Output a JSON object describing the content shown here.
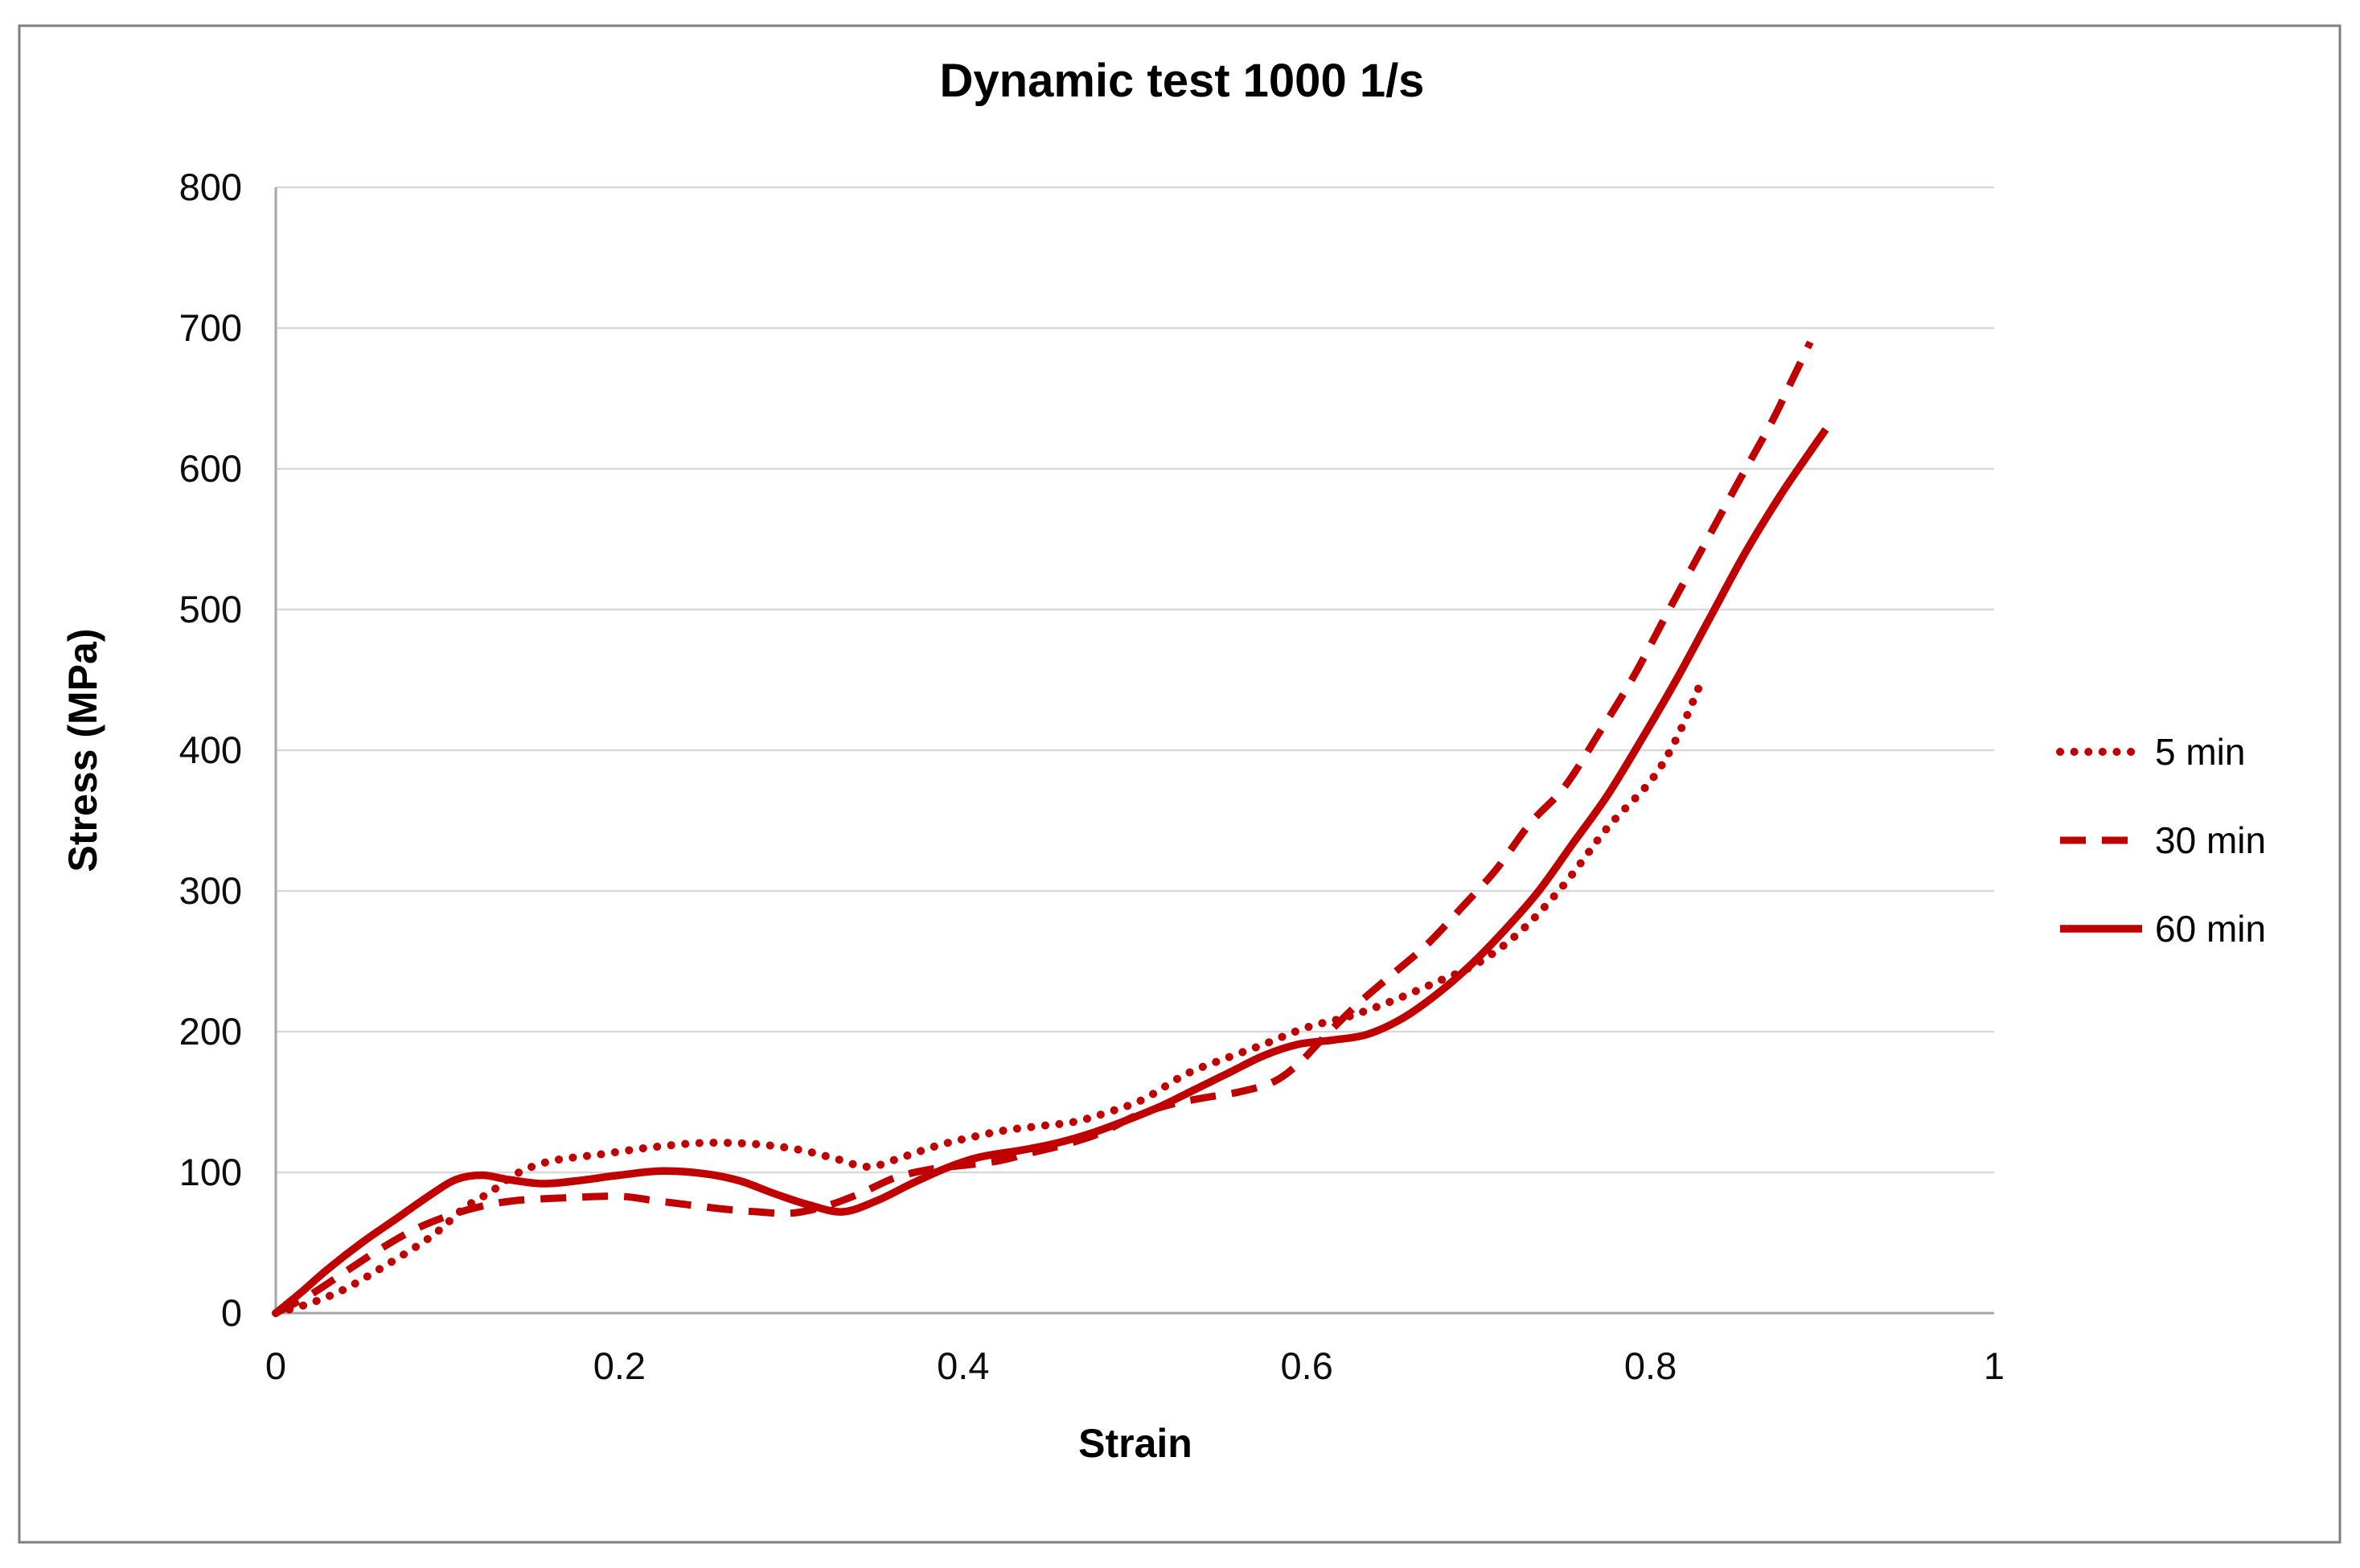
{
  "window": {
    "background": "#ffffff",
    "border_color": "#7f7f7f"
  },
  "colors": {
    "series": "#C00000",
    "gridline": "#D9D9D9",
    "axis_line": "#A6A6A6",
    "text": "#000000"
  },
  "chart_data": {
    "type": "line",
    "title": "Dynamic test 1000 1/s",
    "xlabel": "Strain",
    "ylabel": "Stress (MPa)",
    "xlim": [
      0,
      1
    ],
    "ylim": [
      0,
      800
    ],
    "x_ticks": [
      0,
      0.2,
      0.4,
      0.6,
      0.8,
      1
    ],
    "x_tick_labels": [
      "0",
      "0.2",
      "0.4",
      "0.6",
      "0.8",
      "1"
    ],
    "y_ticks": [
      0,
      100,
      200,
      300,
      400,
      500,
      600,
      700,
      800
    ],
    "y_tick_labels": [
      "0",
      "100",
      "200",
      "300",
      "400",
      "500",
      "600",
      "700",
      "800"
    ],
    "grid": "horizontal",
    "legend_position": "right",
    "series": [
      {
        "name": "5 min",
        "style": "dotted",
        "color": "#C00000",
        "points": [
          [
            0,
            0
          ],
          [
            0.02,
            7
          ],
          [
            0.04,
            17
          ],
          [
            0.06,
            31
          ],
          [
            0.09,
            54
          ],
          [
            0.11,
            75
          ],
          [
            0.125,
            86
          ],
          [
            0.14,
            99
          ],
          [
            0.16,
            108
          ],
          [
            0.19,
            113
          ],
          [
            0.22,
            118
          ],
          [
            0.25,
            121
          ],
          [
            0.28,
            120
          ],
          [
            0.305,
            116
          ],
          [
            0.325,
            110
          ],
          [
            0.345,
            104
          ],
          [
            0.365,
            111
          ],
          [
            0.385,
            119
          ],
          [
            0.405,
            125
          ],
          [
            0.425,
            130
          ],
          [
            0.445,
            133
          ],
          [
            0.465,
            136
          ],
          [
            0.485,
            143
          ],
          [
            0.505,
            152
          ],
          [
            0.53,
            170
          ],
          [
            0.555,
            182
          ],
          [
            0.575,
            191
          ],
          [
            0.6,
            203
          ],
          [
            0.625,
            211
          ],
          [
            0.65,
            222
          ],
          [
            0.675,
            235
          ],
          [
            0.7,
            249
          ],
          [
            0.725,
            272
          ],
          [
            0.75,
            305
          ],
          [
            0.775,
            345
          ],
          [
            0.8,
            378
          ],
          [
            0.815,
            408
          ],
          [
            0.83,
            450
          ]
        ]
      },
      {
        "name": "30 min",
        "style": "dashed",
        "color": "#C00000",
        "points": [
          [
            0,
            0
          ],
          [
            0.02,
            13
          ],
          [
            0.04,
            29
          ],
          [
            0.06,
            45
          ],
          [
            0.08,
            59
          ],
          [
            0.1,
            69
          ],
          [
            0.12,
            76
          ],
          [
            0.14,
            80
          ],
          [
            0.17,
            82
          ],
          [
            0.2,
            83
          ],
          [
            0.22,
            80
          ],
          [
            0.24,
            77
          ],
          [
            0.26,
            74
          ],
          [
            0.28,
            72
          ],
          [
            0.3,
            71
          ],
          [
            0.32,
            76
          ],
          [
            0.34,
            85
          ],
          [
            0.36,
            96
          ],
          [
            0.38,
            102
          ],
          [
            0.4,
            105
          ],
          [
            0.42,
            108
          ],
          [
            0.44,
            114
          ],
          [
            0.46,
            120
          ],
          [
            0.48,
            128
          ],
          [
            0.5,
            140
          ],
          [
            0.52,
            148
          ],
          [
            0.54,
            153
          ],
          [
            0.56,
            157
          ],
          [
            0.58,
            164
          ],
          [
            0.595,
            177
          ],
          [
            0.61,
            196
          ],
          [
            0.63,
            220
          ],
          [
            0.65,
            241
          ],
          [
            0.67,
            262
          ],
          [
            0.69,
            288
          ],
          [
            0.71,
            315
          ],
          [
            0.73,
            348
          ],
          [
            0.75,
            374
          ],
          [
            0.77,
            412
          ],
          [
            0.79,
            452
          ],
          [
            0.81,
            498
          ],
          [
            0.83,
            543
          ],
          [
            0.85,
            588
          ],
          [
            0.87,
            632
          ],
          [
            0.882,
            662
          ],
          [
            0.893,
            690
          ]
        ]
      },
      {
        "name": "60 min",
        "style": "solid",
        "color": "#C00000",
        "points": [
          [
            0,
            0
          ],
          [
            0.015,
            15
          ],
          [
            0.03,
            31
          ],
          [
            0.05,
            50
          ],
          [
            0.07,
            67
          ],
          [
            0.09,
            84
          ],
          [
            0.105,
            95
          ],
          [
            0.12,
            98
          ],
          [
            0.135,
            95
          ],
          [
            0.155,
            92
          ],
          [
            0.175,
            94
          ],
          [
            0.2,
            98
          ],
          [
            0.225,
            101
          ],
          [
            0.25,
            99
          ],
          [
            0.27,
            94
          ],
          [
            0.29,
            85
          ],
          [
            0.31,
            77
          ],
          [
            0.33,
            72
          ],
          [
            0.35,
            80
          ],
          [
            0.37,
            92
          ],
          [
            0.39,
            103
          ],
          [
            0.41,
            111
          ],
          [
            0.435,
            116
          ],
          [
            0.455,
            121
          ],
          [
            0.475,
            128
          ],
          [
            0.495,
            137
          ],
          [
            0.515,
            147
          ],
          [
            0.535,
            159
          ],
          [
            0.555,
            171
          ],
          [
            0.575,
            183
          ],
          [
            0.595,
            191
          ],
          [
            0.615,
            194
          ],
          [
            0.635,
            198
          ],
          [
            0.655,
            209
          ],
          [
            0.675,
            226
          ],
          [
            0.695,
            247
          ],
          [
            0.715,
            272
          ],
          [
            0.735,
            300
          ],
          [
            0.755,
            334
          ],
          [
            0.775,
            368
          ],
          [
            0.795,
            408
          ],
          [
            0.815,
            450
          ],
          [
            0.835,
            495
          ],
          [
            0.855,
            540
          ],
          [
            0.875,
            580
          ],
          [
            0.89,
            607
          ],
          [
            0.902,
            628
          ]
        ]
      }
    ]
  }
}
